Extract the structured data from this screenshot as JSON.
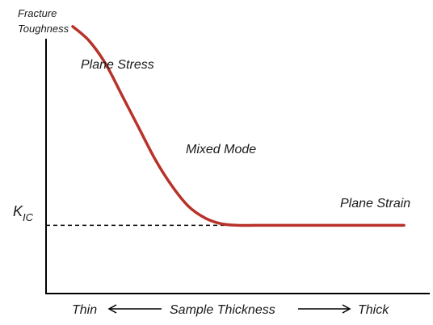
{
  "chart_data": {
    "type": "line",
    "ylabel_line1": "Fracture",
    "ylabel_line2": "Toughness",
    "xlabel": "Sample Thickness",
    "x_start_label": "Thin",
    "x_end_label": "Thick",
    "kic_main": "K",
    "kic_sub": "IC",
    "annotations": {
      "plane_stress": "Plane Stress",
      "mixed_mode": "Mixed Mode",
      "plane_strain": "Plane Strain"
    },
    "curve_color": "#b8322a",
    "axis_color": "#000000",
    "dashed_line_color": "#000000",
    "series": [
      {
        "x": [
          0.0,
          0.05,
          0.1,
          0.15,
          0.2,
          0.25,
          0.3,
          0.35,
          0.4,
          0.45,
          0.5,
          0.55,
          0.6,
          0.65,
          0.7,
          0.8,
          0.9,
          1.0
        ],
        "y": [
          0.92,
          0.87,
          0.79,
          0.68,
          0.57,
          0.46,
          0.37,
          0.3,
          0.26,
          0.24,
          0.235,
          0.235,
          0.235,
          0.235,
          0.235,
          0.235,
          0.235,
          0.235
        ]
      }
    ],
    "kic_level": 0.235,
    "xlim": [
      0,
      1
    ],
    "ylim": [
      0,
      1
    ]
  }
}
